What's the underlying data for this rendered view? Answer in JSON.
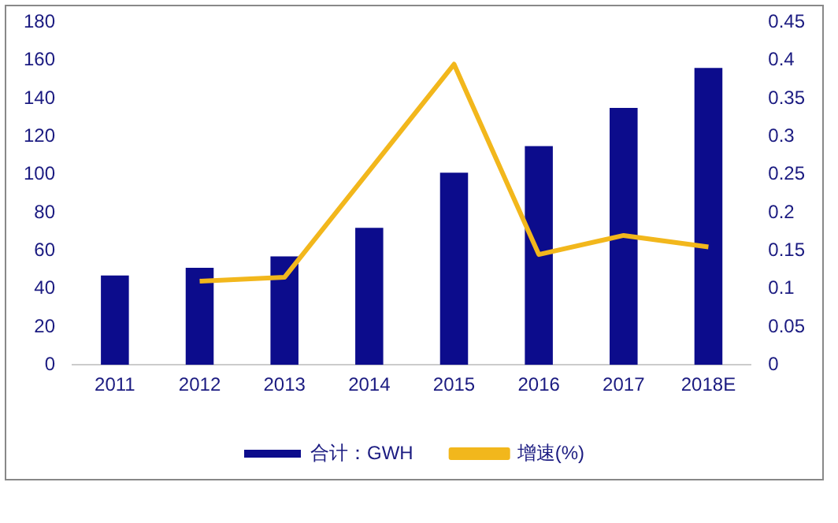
{
  "chart_data": {
    "type": "bar",
    "categories": [
      "2011",
      "2012",
      "2013",
      "2014",
      "2015",
      "2016",
      "2017",
      "2018E"
    ],
    "series": [
      {
        "name": "合计：GWH",
        "color": "#0c0c8c",
        "values": [
          47,
          51,
          57,
          72,
          101,
          115,
          135,
          156
        ]
      },
      {
        "name": "增速(%)",
        "type": "line",
        "axis": "y2",
        "color": "#f2b71c",
        "values": [
          null,
          0.11,
          0.115,
          0.255,
          0.395,
          0.145,
          0.17,
          0.155
        ]
      }
    ],
    "ylim": [
      0,
      180
    ],
    "yticks": [
      0,
      20,
      40,
      60,
      80,
      100,
      120,
      140,
      160,
      180
    ],
    "y2lim": [
      0,
      0.45
    ],
    "y2ticks": [
      0,
      0.05,
      0.1,
      0.15,
      0.2,
      0.25,
      0.3,
      0.35,
      0.4,
      0.45
    ],
    "grid": false,
    "legend": "bottom",
    "marker": "none",
    "line_style": "solid"
  }
}
